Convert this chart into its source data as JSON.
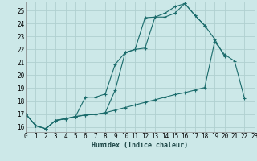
{
  "xlabel": "Humidex (Indice chaleur)",
  "bg_color": "#cce8e8",
  "grid_color": "#b0d0d0",
  "line_color": "#1a6b6b",
  "xlim": [
    0,
    23
  ],
  "ylim": [
    15.6,
    25.7
  ],
  "xticks": [
    0,
    1,
    2,
    3,
    4,
    5,
    6,
    7,
    8,
    9,
    10,
    11,
    12,
    13,
    14,
    15,
    16,
    17,
    18,
    19,
    20,
    21,
    22,
    23
  ],
  "yticks": [
    16,
    17,
    18,
    19,
    20,
    21,
    22,
    23,
    24,
    25
  ],
  "line1_x": [
    0,
    1,
    2,
    3,
    4,
    5,
    6,
    7,
    8,
    9,
    10,
    11,
    12,
    13,
    14,
    15,
    16,
    17,
    18
  ],
  "line1_y": [
    17.0,
    16.1,
    15.85,
    16.5,
    16.65,
    16.8,
    18.3,
    18.3,
    18.55,
    20.85,
    21.75,
    22.0,
    24.45,
    24.5,
    24.8,
    25.3,
    25.55,
    24.65,
    23.85
  ],
  "line2_x": [
    0,
    1,
    2,
    3,
    4,
    5,
    6,
    7,
    8,
    9,
    10,
    11,
    12,
    13,
    14,
    15,
    16,
    17,
    18,
    19,
    20,
    21,
    22
  ],
  "line2_y": [
    17.0,
    16.1,
    15.85,
    16.5,
    16.62,
    16.8,
    16.92,
    16.97,
    17.1,
    17.3,
    17.5,
    17.7,
    17.9,
    18.1,
    18.3,
    18.5,
    18.65,
    18.85,
    19.05,
    22.6,
    21.6,
    21.1,
    18.2
  ],
  "line3_x": [
    0,
    1,
    2,
    3,
    4,
    5,
    6,
    7,
    8,
    9,
    10,
    11,
    12,
    13,
    14,
    15,
    16,
    17,
    18,
    19,
    20
  ],
  "line3_y": [
    17.0,
    16.1,
    15.85,
    16.5,
    16.62,
    16.8,
    16.92,
    16.97,
    17.1,
    18.85,
    21.75,
    22.0,
    22.1,
    24.5,
    24.5,
    24.8,
    25.55,
    24.65,
    23.85,
    22.8,
    21.45
  ]
}
